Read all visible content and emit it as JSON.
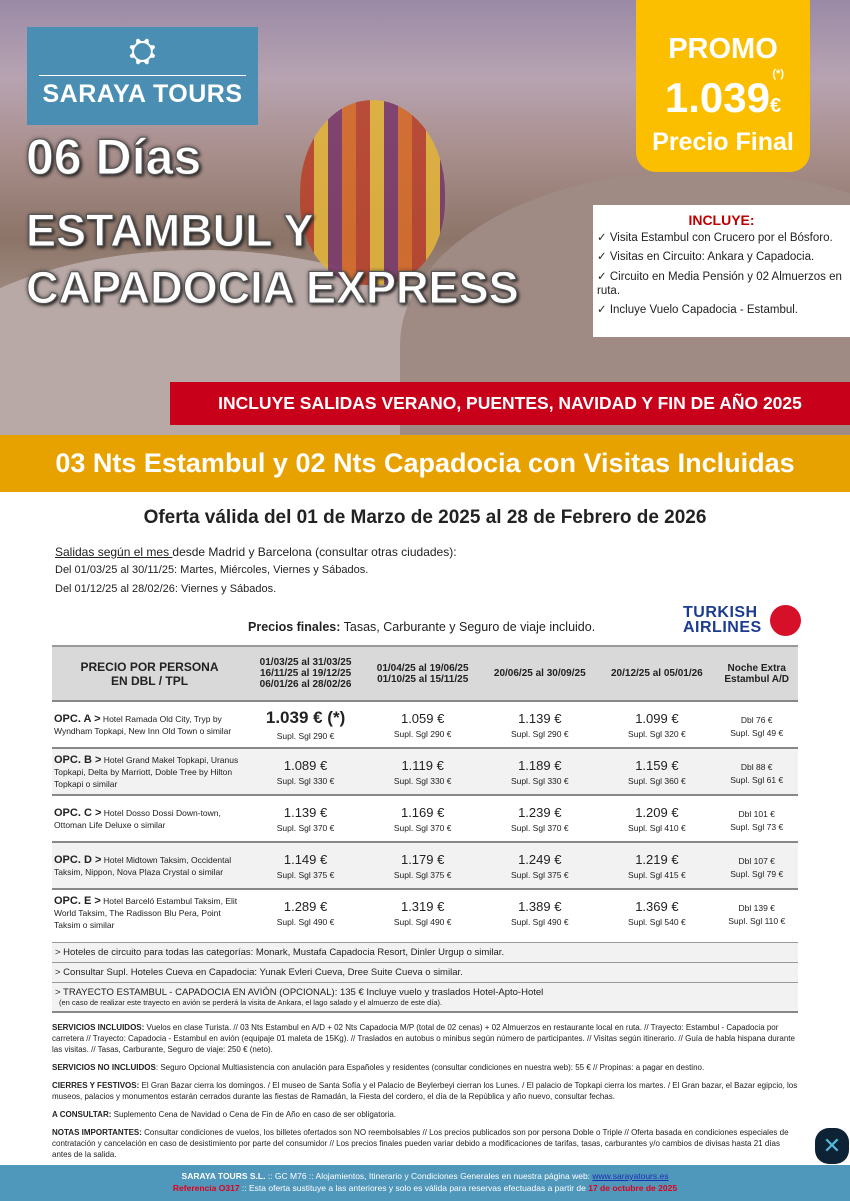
{
  "logo": {
    "name": "SARAYA TOURS"
  },
  "hero": {
    "days": "06 Días",
    "title1": "ESTAMBUL Y",
    "title2": "CAPADOCIA EXPRESS"
  },
  "promo": {
    "label": "PROMO",
    "asterisk": "(*)",
    "price": "1.039",
    "currency": "€",
    "final": "Precio Final"
  },
  "includes": {
    "title": "INCLUYE:",
    "items": [
      "✓ Visita Estambul con Crucero por el Bósforo.",
      "✓ Visitas en Circuito: Ankara y Capadocia.",
      "✓ Circuito en Media Pensión y 02 Almuerzos en ruta.",
      "✓ Incluye Vuelo Capadocia - Estambul."
    ]
  },
  "banner": "INCLUYE SALIDAS VERANO, PUENTES, NAVIDAD Y FIN DE AÑO 2025",
  "subtitle": "03 Nts Estambul y 02 Nts Capadocia con Visitas Incluidas",
  "validity": "Oferta válida del 01 de Marzo de 2025 al 28 de Febrero de 2026",
  "departures": {
    "underlined": "Salidas según el mes ",
    "line1": "desde Madrid y Barcelona (consultar otras ciudades):",
    "line2": "Del 01/03/25 al 30/11/25: Martes, Miércoles, Viernes y Sábados.",
    "line3": "Del 01/12/25 al 28/02/26: Viernes y Sábados."
  },
  "prices_note": {
    "bold": "Precios finales:",
    "text": " Tasas, Carburante y Seguro de viaje incluido."
  },
  "airline": {
    "line1": "TURKISH",
    "line2": "AIRLINES"
  },
  "table": {
    "headers": [
      "PRECIO POR PERSONA\nEN DBL / TPL",
      "01/03/25 al 31/03/25\n16/11/25 al 19/12/25\n06/01/26 al 28/02/26",
      "01/04/25 al 19/06/25\n01/10/25 al 15/11/25",
      "20/06/25 al 30/09/25",
      "20/12/25 al 05/01/26",
      "Noche Extra\nEstambul A/D"
    ],
    "rows": [
      {
        "opt": "OPC. A >",
        "hotels": " Hotel Ramada Old City, Tryp by Wyndham Topkapi, New Inn Old Town o similar",
        "prices": [
          "1.039 € (*)",
          "1.059 €",
          "1.139 €",
          "1.099 €"
        ],
        "sgl": [
          "Supl. Sgl 290 €",
          "Supl. Sgl 290 €",
          "Supl. Sgl 290 €",
          "Supl. Sgl 320 €"
        ],
        "extra_dbl": "Dbl 76 €",
        "extra_sgl": "Supl. Sgl 49 €"
      },
      {
        "opt": "OPC. B >",
        "hotels": " Hotel Grand Makel Topkapi, Uranus Topkapi, Delta by Marriott, Doble Tree by Hilton Topkapi o similar",
        "prices": [
          "1.089 €",
          "1.119 €",
          "1.189 €",
          "1.159 €"
        ],
        "sgl": [
          "Supl. Sgl 330 €",
          "Supl. Sgl 330 €",
          "Supl. Sgl 330 €",
          "Supl. Sgl 360 €"
        ],
        "extra_dbl": "Dbl 88 €",
        "extra_sgl": "Supl. Sgl 61 €"
      },
      {
        "opt": "OPC. C >",
        "hotels": " Hotel Dosso Dossi Down-town, Ottoman Life Deluxe o similar",
        "prices": [
          "1.139 €",
          "1.169 €",
          "1.239 €",
          "1.209 €"
        ],
        "sgl": [
          "Supl. Sgl 370 €",
          "Supl. Sgl 370 €",
          "Supl. Sgl 370 €",
          "Supl. Sgl 410 €"
        ],
        "extra_dbl": "Dbl 101 €",
        "extra_sgl": "Supl. Sgl 73 €"
      },
      {
        "opt": "OPC. D >",
        "hotels": " Hotel Midtown Taksim, Occidental Taksim, Nippon, Nova Plaza Crystal o similar",
        "prices": [
          "1.149 €",
          "1.179 €",
          "1.249 €",
          "1.219 €"
        ],
        "sgl": [
          "Supl. Sgl 375 €",
          "Supl. Sgl 375 €",
          "Supl. Sgl 375 €",
          "Supl. Sgl 415 €"
        ],
        "extra_dbl": "Dbl 107 €",
        "extra_sgl": "Supl. Sgl 79 €"
      },
      {
        "opt": "OPC. E >",
        "hotels": " Hotel Barceló Estambul Taksim, Elit World Taksim, The Radisson Blu Pera, Point Taksim o similar",
        "prices": [
          "1.289 €",
          "1.319 €",
          "1.389 €",
          "1.369 €"
        ],
        "sgl": [
          "Supl. Sgl 490 €",
          "Supl. Sgl 490 €",
          "Supl. Sgl 490 €",
          "Supl. Sgl 540 €"
        ],
        "extra_dbl": "Dbl 139 €",
        "extra_sgl": "Supl. Sgl 110 €"
      }
    ]
  },
  "notes": [
    "> Hoteles de circuito para todas las categorías: Monark, Mustafa Capadocia Resort, Dinler Urgup o similar.",
    "> Consultar Supl. Hoteles Cueva en Capadocia: Yunak Evleri Cueva, Dree Suite Cueva o similar.",
    "> TRAYECTO ESTAMBUL - CAPADOCIA EN AVIÓN (OPCIONAL): 135 € Incluye vuelo y traslados Hotel-Apto-Hotel"
  ],
  "notes_small": "(en caso de realizar este trayecto en avión se perderá la visita de Ankara, el lago salado y el almuerzo de este día).",
  "terms": [
    {
      "label": "SERVICIOS INCLUIDOS:",
      "text": " Vuelos en clase Turista. // 03 Nts Estambul en A/D + 02 Nts Capadocia M/P (total de 02 cenas) + 02 Almuerzos en restaurante local en ruta. // Trayecto: Estambul - Capadocia por carretera // Trayecto: Capadocia - Estambul en avión (equipaje 01 maleta de 15Kg). // Traslados en autobus o minibus según número de participantes. // Visitas según itinerario. // Guía de habla hispana durante las visitas. // Tasas, Carburante, Seguro de viaje: 250 € (neto)."
    },
    {
      "label": "SERVICIOS NO INCLUIDOS",
      "text": ": Seguro Opcional Multiasistencia con anulación para Españoles y residentes (consultar condiciones en nuestra web): 55 € // Propinas: a pagar en destino."
    },
    {
      "label": "CIERRES Y FESTIVOS:",
      "text": " El Gran Bazar cierra los domingos. / El museo de Santa Sofía y el Palacio de Beylerbeyi cierran los Lunes. / El palacio de Topkapi cierra los martes. / El Gran bazar, el Bazar egipcio, los museos, palacios y monumentos estarán cerrados durante las fiestas de Ramadán, la Fiesta del cordero, el día de la República y año nuevo, consultar fechas."
    },
    {
      "label": "A CONSULTAR:",
      "text": " Suplemento Cena de Navidad o Cena de Fin de Año en caso de ser obligatoria."
    },
    {
      "label": "NOTAS IMPORTANTES:",
      "text": " Consultar condiciones de vuelos, los billetes ofertados son NO reembolsables // Los precios publicados son por persona Doble o Triple // Oferta basada en condiciones especiales de contratación y cancelación en caso de desistimiento por parte del consumidor // Los precios finales pueden variar debido a modificaciones de tarifas, tasas, carburantes y/o cambios de divisas hasta 21 días antes de la salida."
    }
  ],
  "footer": {
    "company": "SARAYA TOURS S.L.",
    "line1": " :: GC M76 ::  Alojamientos, Itinerario y Condiciones Generales en nuestra página web: ",
    "link": "www.sarayatours.es",
    "ref": "Referencia O317",
    "line2": " :: Esta oferta sustituye a las anteriores y solo es válida para reservas efectuadas a partir de ",
    "date": "17 de octubre de 2025"
  },
  "colors": {
    "brand_blue": "#4a8fb3",
    "promo_yellow": "#fcbf00",
    "banner_red": "#c8001a",
    "orange": "#e8a200"
  }
}
